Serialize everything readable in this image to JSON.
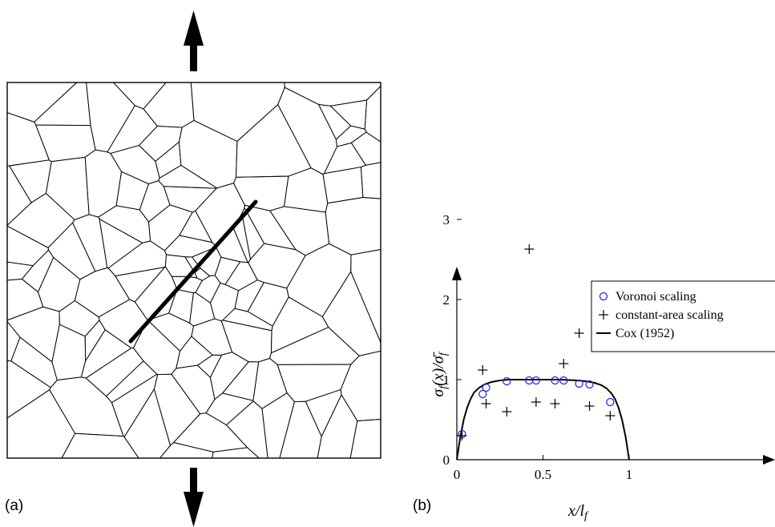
{
  "figure": {
    "panel_a_label": "(a)",
    "panel_b_label": "(b)"
  },
  "chart_data": {
    "type": "scatter",
    "title": "",
    "xlabel": "x/l_f",
    "ylabel": "σ_f(x)/σ̄_f",
    "xlim": [
      0,
      1.15
    ],
    "ylim": [
      0,
      3.6
    ],
    "xticks": [
      {
        "value": 0,
        "label": "0"
      },
      {
        "value": 0.5,
        "label": "0.5"
      },
      {
        "value": 1,
        "label": "1"
      }
    ],
    "yticks": [
      {
        "value": 0,
        "label": "0"
      },
      {
        "value": 1,
        "label": "1"
      },
      {
        "value": 2,
        "label": "2"
      },
      {
        "value": 3,
        "label": "3"
      }
    ],
    "grid": false,
    "legend_position": "top-right",
    "series": [
      {
        "name": "Voronoi scaling",
        "marker": "circle",
        "color": "#2a2ad6",
        "x": [
          0.03,
          0.15,
          0.17,
          0.29,
          0.42,
          0.46,
          0.57,
          0.62,
          0.71,
          0.77,
          0.89
        ],
        "y": [
          0.32,
          0.82,
          0.9,
          0.98,
          0.99,
          0.99,
          0.99,
          0.99,
          0.95,
          0.94,
          0.72
        ]
      },
      {
        "name": "constant-area scaling",
        "marker": "plus",
        "color": "#000000",
        "x": [
          0.03,
          0.15,
          0.17,
          0.29,
          0.42,
          0.46,
          0.57,
          0.62,
          0.71,
          0.77,
          0.89
        ],
        "y": [
          0.3,
          1.12,
          0.7,
          0.6,
          2.63,
          0.72,
          0.7,
          1.2,
          1.58,
          0.67,
          0.55
        ]
      },
      {
        "name": "Cox (1952)",
        "marker": "line",
        "color": "#000000",
        "x": [
          0,
          0.02,
          0.04,
          0.06,
          0.08,
          0.1,
          0.13,
          0.16,
          0.2,
          0.25,
          0.3,
          0.4,
          0.5,
          0.6,
          0.7,
          0.75,
          0.8,
          0.84,
          0.87,
          0.9,
          0.92,
          0.94,
          0.96,
          0.98,
          1.0
        ],
        "y": [
          0,
          0.28,
          0.5,
          0.65,
          0.76,
          0.84,
          0.9,
          0.94,
          0.97,
          0.99,
          1.0,
          1.0,
          1.0,
          1.0,
          0.99,
          0.98,
          0.96,
          0.93,
          0.89,
          0.82,
          0.75,
          0.64,
          0.49,
          0.28,
          0
        ]
      }
    ]
  }
}
